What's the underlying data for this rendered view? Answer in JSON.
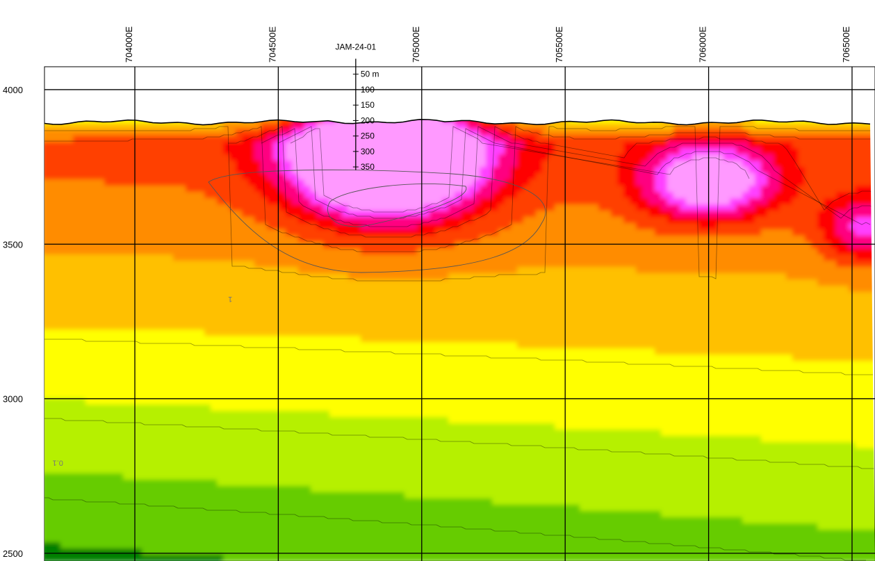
{
  "chart_data": {
    "type": "heatmap",
    "title": "",
    "xlabel": "",
    "ylabel": "",
    "x_ticks": [
      {
        "value": 704000,
        "label": "704000E"
      },
      {
        "value": 704500,
        "label": "704500E"
      },
      {
        "value": 705000,
        "label": "705000E"
      },
      {
        "value": 705500,
        "label": "705500E"
      },
      {
        "value": 706000,
        "label": "706000E"
      },
      {
        "value": 706500,
        "label": "706500E"
      }
    ],
    "y_ticks": [
      {
        "value": 4000,
        "label": "4000"
      },
      {
        "value": 3500,
        "label": "3500"
      },
      {
        "value": 3000,
        "label": "3000"
      },
      {
        "value": 2500,
        "label": "2500"
      }
    ],
    "xlim": [
      703530,
      706580
    ],
    "ylim": [
      2475,
      4290
    ],
    "grid": true,
    "colorscale": [
      "#008000",
      "#66cc00",
      "#b6f000",
      "#ffff00",
      "#ffc000",
      "#ff8c00",
      "#ff4000",
      "#ff0000",
      "#ff0080",
      "#ff40ff",
      "#ff99ff"
    ],
    "anomalies": [
      {
        "x": 704880,
        "y": 3800,
        "value": 1.0,
        "sx": 330,
        "sy": 205
      },
      {
        "x": 706000,
        "y": 3700,
        "value": 0.55,
        "sx": 230,
        "sy": 120
      },
      {
        "x": 706550,
        "y": 3550,
        "value": 0.35,
        "sx": 160,
        "sy": 110
      }
    ],
    "contour_labels": [
      {
        "x": 703750,
        "y": 2800,
        "text": "0.1"
      },
      {
        "x": 704340,
        "y": 3330,
        "text": "1"
      }
    ],
    "drillhole": {
      "name": "JAM-24-01",
      "collar": {
        "x": 704770,
        "y": 4100
      },
      "depths": [
        {
          "depth": 50,
          "label": "50 m"
        },
        {
          "depth": 100,
          "label": "100"
        },
        {
          "depth": 150,
          "label": "150"
        },
        {
          "depth": 200,
          "label": "200"
        },
        {
          "depth": 250,
          "label": "250"
        },
        {
          "depth": 300,
          "label": "300"
        },
        {
          "depth": 350,
          "label": "350"
        }
      ]
    }
  }
}
